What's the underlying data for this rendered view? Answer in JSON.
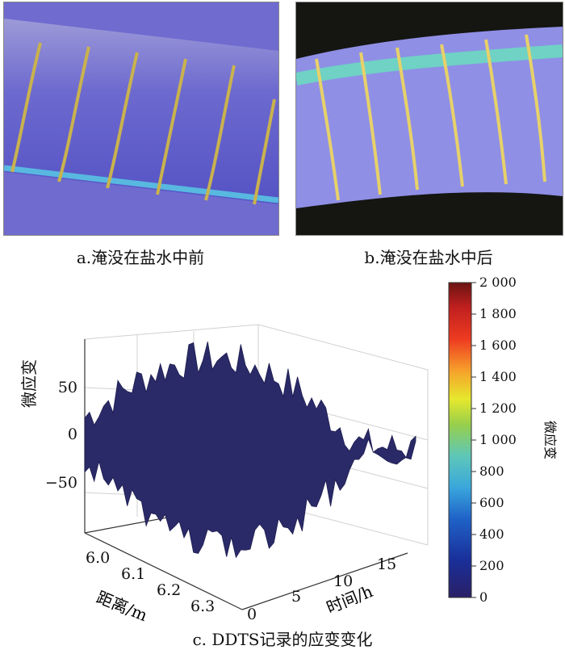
{
  "figure": {
    "caption_a": "a.淹没在盐水中前",
    "caption_b": "b.淹没在盐水中后",
    "caption_c": "c. DDTS记录的应变变化"
  },
  "chart_data": {
    "type": "surface",
    "title": "",
    "xlabel": "距离/m",
    "ylabel": "时间/h",
    "zlabel": "微应变",
    "x_ticks": [
      "6.0",
      "6.1",
      "6.2",
      "6.3"
    ],
    "y_ticks": [
      "0",
      "5",
      "10",
      "15"
    ],
    "z_ticks": [
      "50",
      "0",
      "−50"
    ],
    "x_range": [
      5.95,
      6.35
    ],
    "y_range": [
      0,
      18
    ],
    "z_range": [
      -80,
      80
    ],
    "colormap": "jet",
    "colorbar": {
      "label": "微应变",
      "ticks": [
        "2 000",
        "1 800",
        "1 600",
        "1 400",
        "1 200",
        "1 000",
        "800",
        "600",
        "400",
        "200",
        "0"
      ],
      "range": [
        0,
        2000
      ]
    },
    "surface_color": "#2b2a68",
    "grid": true
  }
}
